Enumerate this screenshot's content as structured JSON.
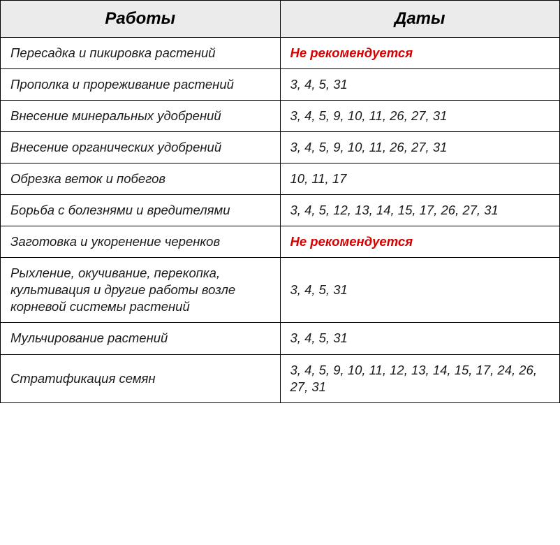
{
  "table": {
    "headers": {
      "col_work": "Работы",
      "col_dates": "Даты"
    },
    "header_bg": "#ebebeb",
    "header_fontsize": 24,
    "cell_fontsize": 18.5,
    "border_color": "#000000",
    "warning_color": "#d60000",
    "text_color": "#1a1a1a",
    "rows": [
      {
        "work": "Пересадка и пикировка растений",
        "dates": "Не рекомендуется",
        "is_warning": true
      },
      {
        "work": "Прополка и прореживание растений",
        "dates": "3, 4, 5, 31",
        "is_warning": false
      },
      {
        "work": "Внесение минеральных удобрений",
        "dates": "3, 4, 5, 9, 10, 11, 26, 27, 31",
        "is_warning": false
      },
      {
        "work": "Внесение органических удобрений",
        "dates": "3, 4, 5, 9, 10, 11, 26, 27, 31",
        "is_warning": false
      },
      {
        "work": "Обрезка веток и побегов",
        "dates": "10, 11, 17",
        "is_warning": false
      },
      {
        "work": "Борьба с болезнями и вредителями",
        "dates": "3, 4, 5, 12, 13, 14, 15, 17, 26, 27, 31",
        "is_warning": false
      },
      {
        "work": "Заготовка и укоренение черенков",
        "dates": "Не рекомендуется",
        "is_warning": true
      },
      {
        "work": "Рыхление, окучивание, перекопка, культивация и другие работы возле корневой системы растений",
        "dates": "3, 4, 5, 31",
        "is_warning": false
      },
      {
        "work": "Мульчирование растений",
        "dates": "3, 4, 5, 31",
        "is_warning": false
      },
      {
        "work": "Стратификация семян",
        "dates": "3, 4, 5, 9, 10, 11, 12, 13, 14, 15, 17, 24, 26, 27, 31",
        "is_warning": false
      }
    ]
  }
}
